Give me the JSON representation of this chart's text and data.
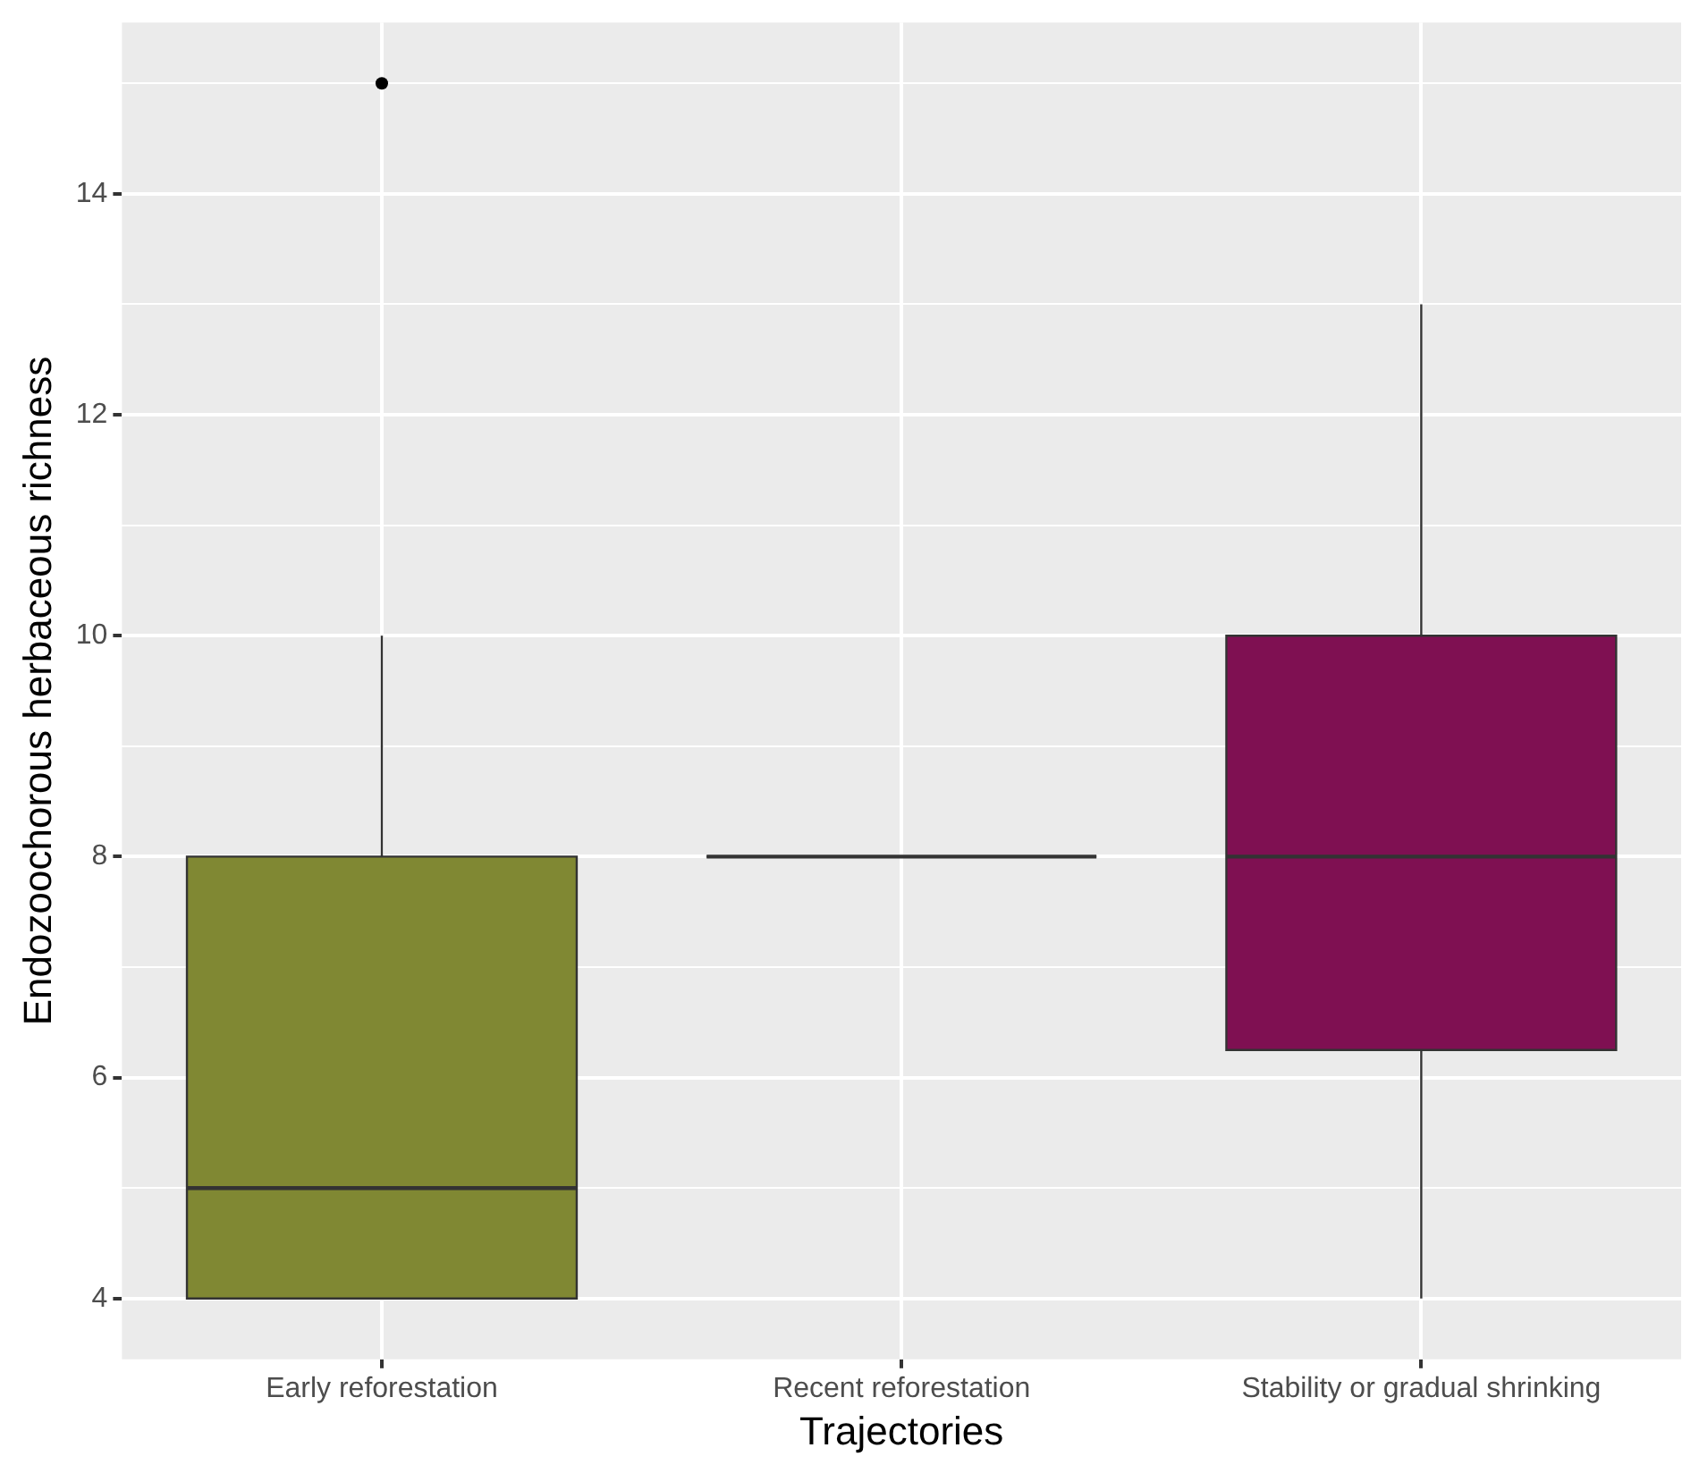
{
  "chart_data": {
    "type": "box",
    "xlabel": "Trajectories",
    "ylabel": "Endozoochorous herbaceous richness",
    "categories": [
      "Early reforestation",
      "Recent reforestation",
      "Stability or gradual shrinking"
    ],
    "boxes": [
      {
        "low": 4,
        "q1": 4,
        "median": 5,
        "q3": 8,
        "high": 10,
        "outliers": [
          15
        ]
      },
      {
        "low": 8,
        "q1": 8,
        "median": 8,
        "q3": 8,
        "high": 8
      },
      {
        "low": 4,
        "q1": 6.25,
        "median": 8,
        "q3": 10,
        "high": 13
      }
    ],
    "colors": [
      "#808833",
      "#333333",
      "#7f1052"
    ],
    "ylim": [
      3.45,
      15.55
    ],
    "yticks": [
      4,
      {
        "value": 5,
        "label": null
      },
      6,
      {
        "value": 7,
        "label": null
      },
      8,
      {
        "value": 9,
        "label": null
      },
      10,
      {
        "value": 11,
        "label": null
      },
      12,
      {
        "value": 13,
        "label": null
      },
      14,
      {
        "value": 15,
        "label": null
      }
    ],
    "grid": true,
    "legend": false
  }
}
